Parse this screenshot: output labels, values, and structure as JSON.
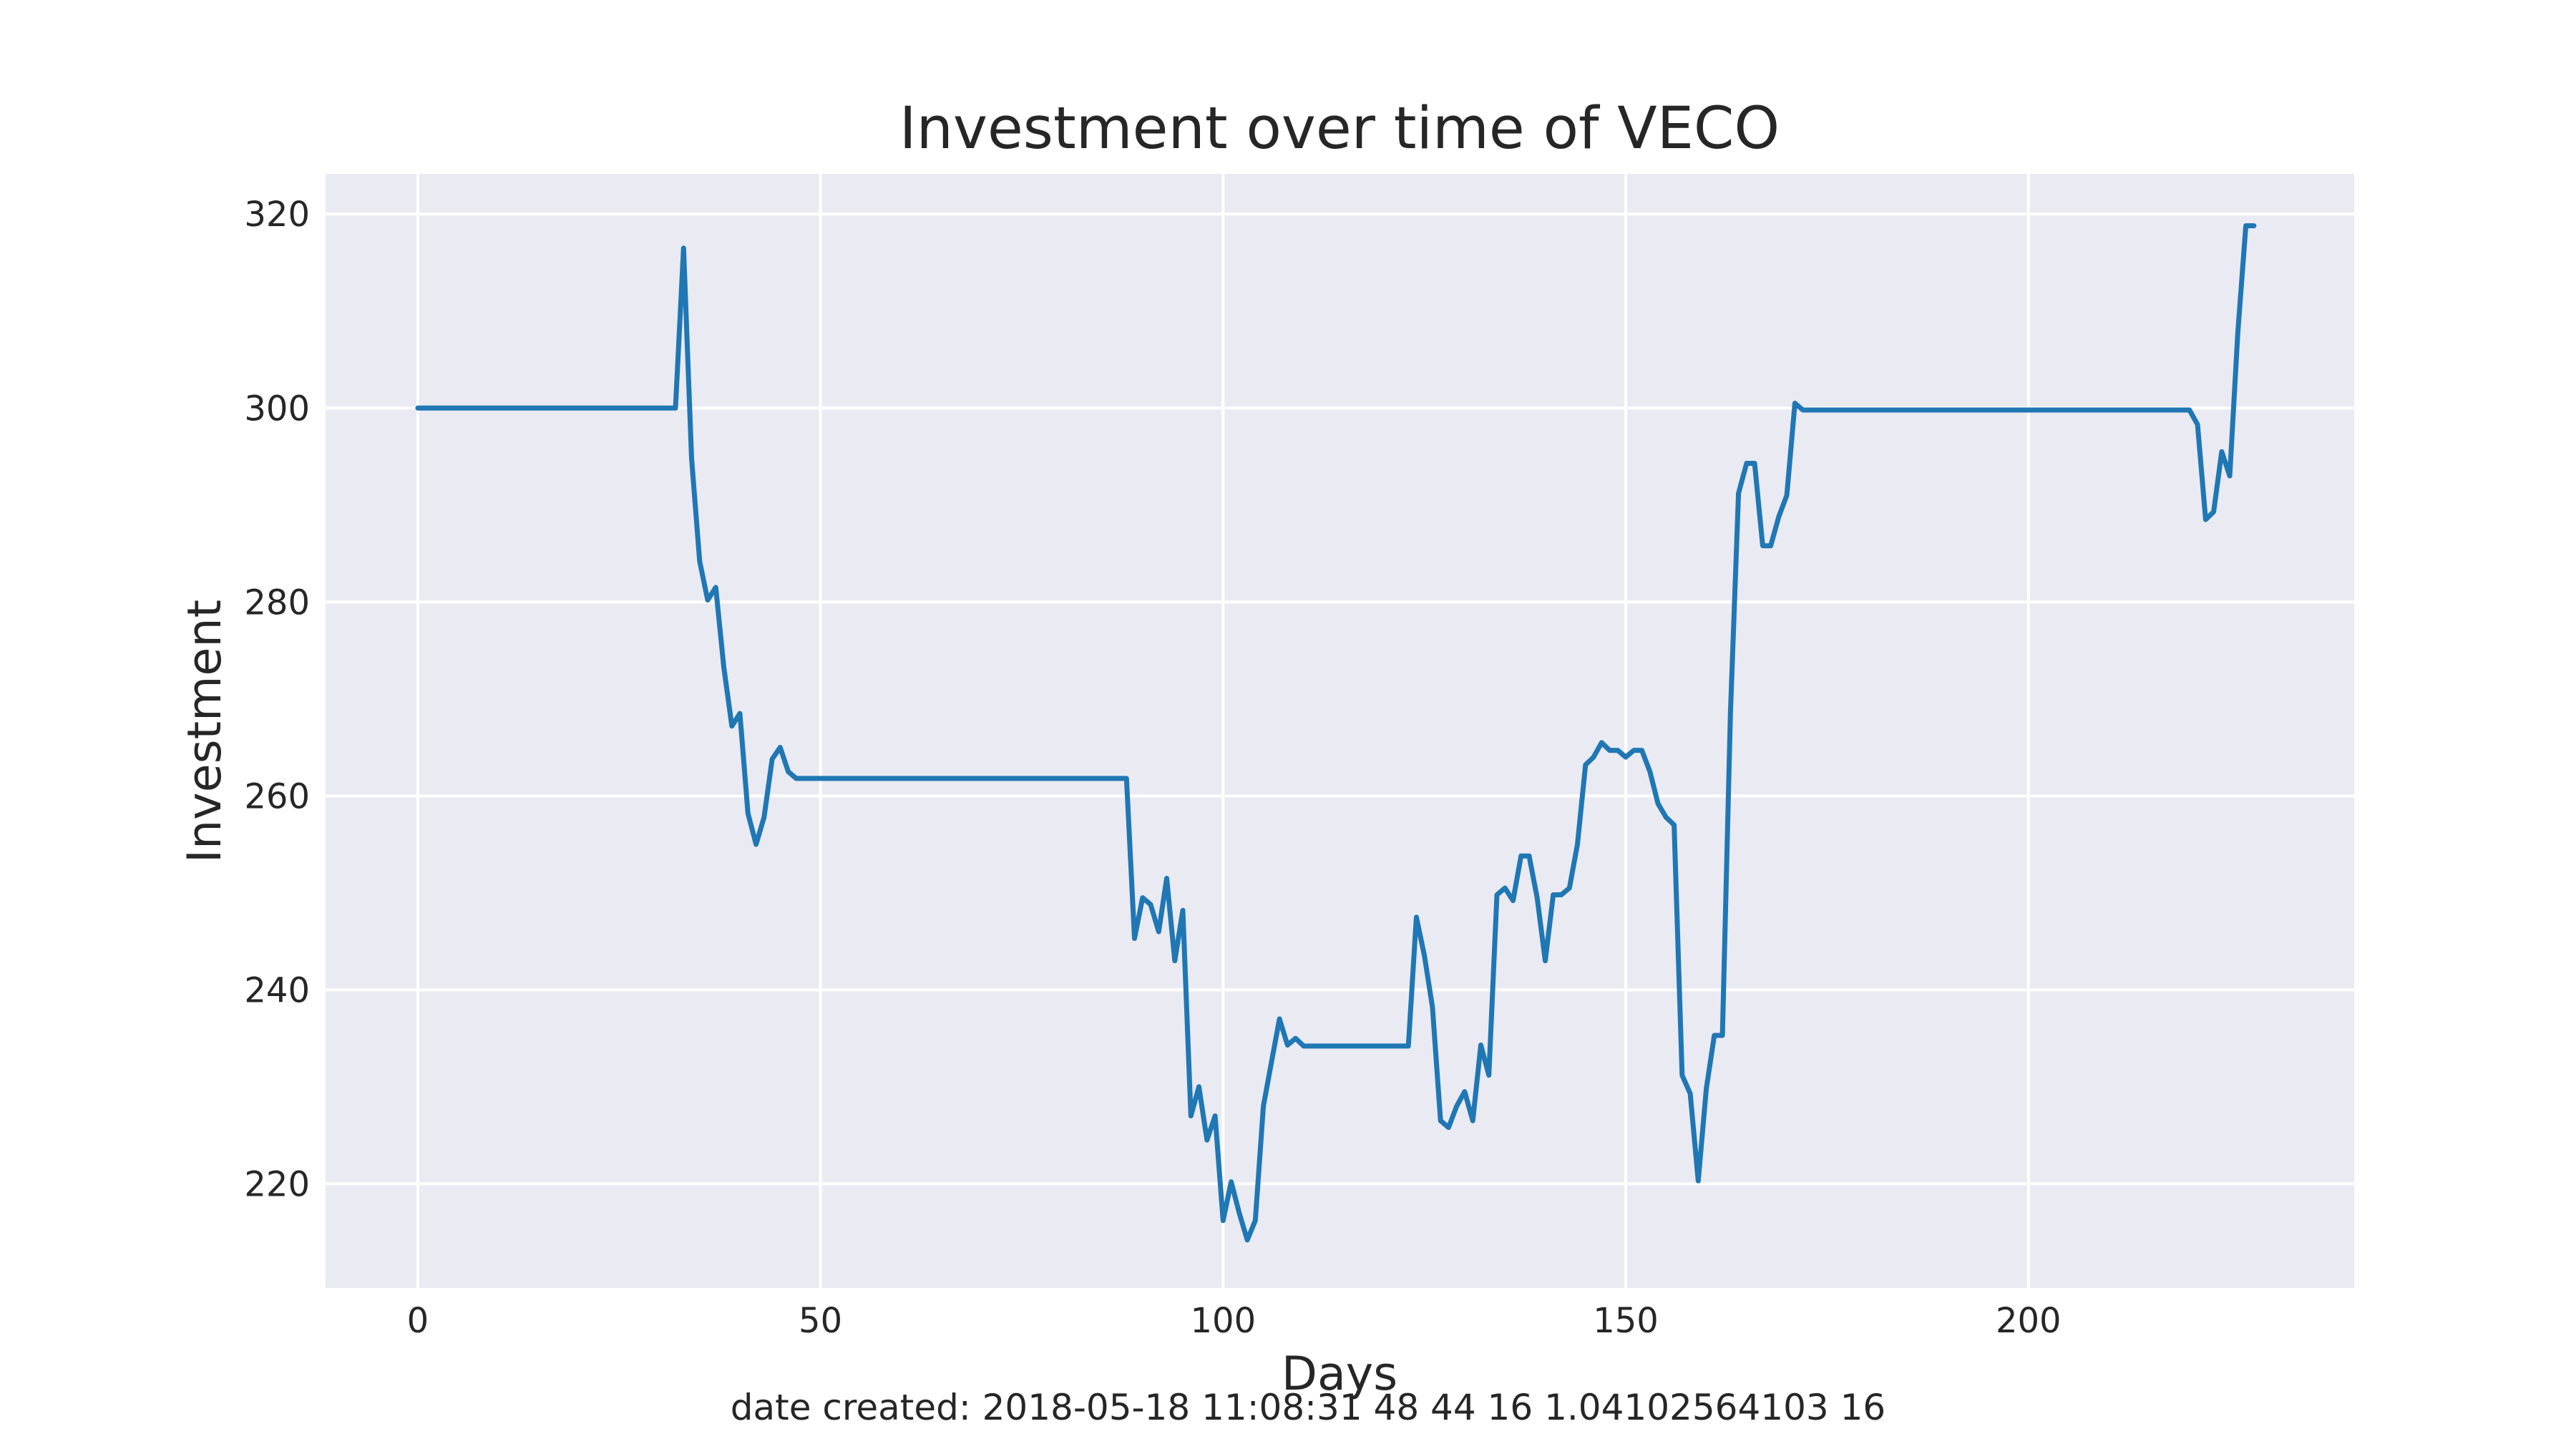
{
  "chart_data": {
    "type": "line",
    "title": "Investment over time of VECO",
    "xlabel": "Days",
    "ylabel": "Investment",
    "xlim": [
      -11.45,
      240.45
    ],
    "ylim": [
      209.25,
      324.15
    ],
    "xticks": [
      0,
      50,
      100,
      150,
      200
    ],
    "yticks": [
      220,
      240,
      260,
      280,
      300,
      320
    ],
    "grid": true,
    "background": "#eaeaf2",
    "grid_color": "#ffffff",
    "line_color": "#1f77b4",
    "series": [
      {
        "points": [
          [
            0,
            300
          ],
          [
            5,
            300
          ],
          [
            10,
            300
          ],
          [
            15,
            300
          ],
          [
            20,
            300
          ],
          [
            25,
            300
          ],
          [
            30,
            300
          ],
          [
            32,
            300
          ],
          [
            33,
            316.5
          ],
          [
            34,
            294.8
          ],
          [
            35,
            284.2
          ],
          [
            36,
            280.2
          ],
          [
            37,
            281.5
          ],
          [
            38,
            273.3
          ],
          [
            39,
            267.2
          ],
          [
            40,
            268.5
          ],
          [
            41,
            258.2
          ],
          [
            42,
            255.0
          ],
          [
            43,
            257.8
          ],
          [
            44,
            263.8
          ],
          [
            45,
            265.0
          ],
          [
            46,
            262.5
          ],
          [
            47,
            261.8
          ],
          [
            50,
            261.8
          ],
          [
            60,
            261.8
          ],
          [
            70,
            261.8
          ],
          [
            80,
            261.8
          ],
          [
            88,
            261.8
          ],
          [
            89,
            245.3
          ],
          [
            90,
            249.5
          ],
          [
            91,
            248.8
          ],
          [
            92,
            246.0
          ],
          [
            93,
            251.5
          ],
          [
            94,
            243.0
          ],
          [
            95,
            248.2
          ],
          [
            96,
            227.0
          ],
          [
            97,
            230.0
          ],
          [
            98,
            224.5
          ],
          [
            99,
            227.0
          ],
          [
            100,
            216.2
          ],
          [
            101,
            220.2
          ],
          [
            102,
            217.0
          ],
          [
            103,
            214.2
          ],
          [
            104,
            216.2
          ],
          [
            105,
            228.0
          ],
          [
            106,
            232.5
          ],
          [
            107,
            237.0
          ],
          [
            108,
            234.3
          ],
          [
            109,
            235.0
          ],
          [
            110,
            234.2
          ],
          [
            115,
            234.2
          ],
          [
            120,
            234.2
          ],
          [
            123,
            234.2
          ],
          [
            124,
            247.5
          ],
          [
            125,
            243.5
          ],
          [
            126,
            238.2
          ],
          [
            127,
            226.5
          ],
          [
            128,
            225.8
          ],
          [
            129,
            228.0
          ],
          [
            130,
            229.5
          ],
          [
            131,
            226.5
          ],
          [
            132,
            234.3
          ],
          [
            133,
            231.2
          ],
          [
            134,
            249.8
          ],
          [
            135,
            250.5
          ],
          [
            136,
            249.2
          ],
          [
            137,
            253.8
          ],
          [
            138,
            253.8
          ],
          [
            139,
            249.5
          ],
          [
            140,
            243.0
          ],
          [
            141,
            249.8
          ],
          [
            142,
            249.8
          ],
          [
            143,
            250.5
          ],
          [
            144,
            255.0
          ],
          [
            145,
            263.2
          ],
          [
            146,
            264.0
          ],
          [
            147,
            265.5
          ],
          [
            148,
            264.7
          ],
          [
            149,
            264.7
          ],
          [
            150,
            264.0
          ],
          [
            151,
            264.7
          ],
          [
            152,
            264.7
          ],
          [
            153,
            262.5
          ],
          [
            154,
            259.2
          ],
          [
            155,
            257.8
          ],
          [
            156,
            257.0
          ],
          [
            157,
            231.2
          ],
          [
            158,
            229.3
          ],
          [
            159,
            220.3
          ],
          [
            160,
            229.8
          ],
          [
            161,
            235.3
          ],
          [
            162,
            235.3
          ],
          [
            163,
            268.5
          ],
          [
            164,
            291.2
          ],
          [
            165,
            294.3
          ],
          [
            166,
            294.3
          ],
          [
            167,
            285.8
          ],
          [
            168,
            285.8
          ],
          [
            169,
            288.8
          ],
          [
            170,
            291.0
          ],
          [
            171,
            300.5
          ],
          [
            172,
            299.8
          ],
          [
            180,
            299.8
          ],
          [
            190,
            299.8
          ],
          [
            200,
            299.8
          ],
          [
            210,
            299.8
          ],
          [
            220,
            299.8
          ],
          [
            221,
            298.3
          ],
          [
            222,
            288.5
          ],
          [
            223,
            289.3
          ],
          [
            224,
            295.5
          ],
          [
            225,
            293.0
          ],
          [
            226,
            307.8
          ],
          [
            227,
            318.8
          ],
          [
            228,
            318.8
          ]
        ]
      }
    ]
  },
  "footer": "date created: 2018-05-18 11:08:31 48 44 16 1.04102564103 16"
}
